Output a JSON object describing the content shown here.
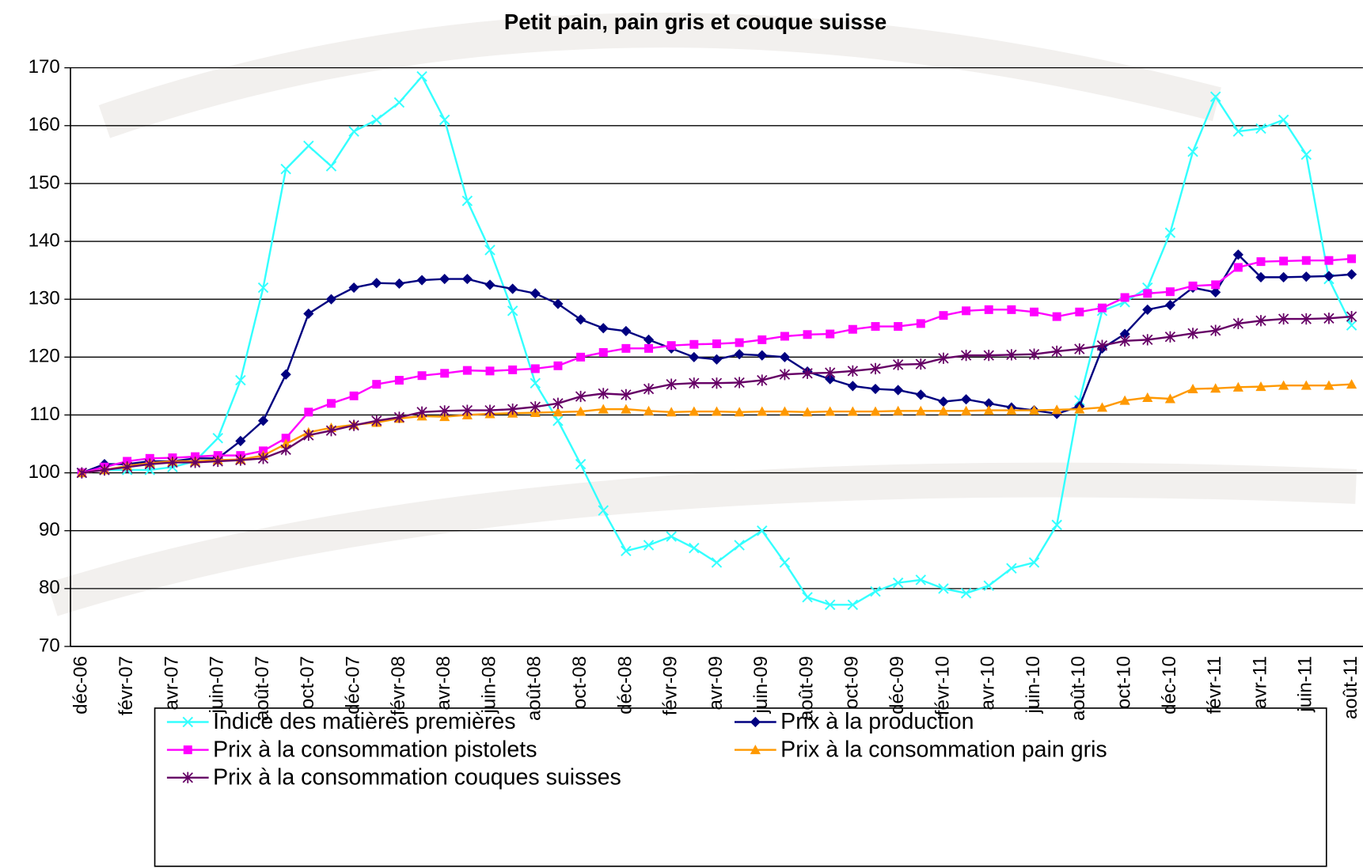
{
  "chart_data": {
    "type": "line",
    "title": "Petit pain, pain gris et couque suisse",
    "categories": [
      "déc-06",
      null,
      "févr-07",
      null,
      "avr-07",
      null,
      "juin-07",
      null,
      "août-07",
      null,
      "oct-07",
      null,
      "déc-07",
      null,
      "févr-08",
      null,
      "avr-08",
      null,
      "juin-08",
      null,
      "août-08",
      null,
      "oct-08",
      null,
      "déc-08",
      null,
      "févr-09",
      null,
      "avr-09",
      null,
      "juin-09",
      null,
      "août-09",
      null,
      "oct-09",
      null,
      "déc-09",
      null,
      "févr-10",
      null,
      "avr-10",
      null,
      "juin-10",
      null,
      "août-10",
      null,
      "oct-10",
      null,
      "déc-10",
      null,
      "févr-11",
      null,
      "avr-11",
      null,
      "juin-11",
      null,
      "août-11"
    ],
    "ylim": [
      70,
      170
    ],
    "yticks": [
      70,
      80,
      90,
      100,
      110,
      120,
      130,
      140,
      150,
      160,
      170
    ],
    "grid": true,
    "series": [
      {
        "name": "Indice des matières premières",
        "color": "#33ffff",
        "marker": "x",
        "values": [
          100,
          100.5,
          100.5,
          100.5,
          101,
          102,
          106,
          116,
          132,
          152.5,
          156.5,
          153,
          159,
          161,
          164,
          168.5,
          161,
          147,
          138.5,
          128,
          115.5,
          109,
          101.5,
          93.5,
          86.5,
          87.5,
          89,
          87,
          84.5,
          87.5,
          90,
          84.5,
          78.5,
          77.2,
          77.2,
          79.5,
          81,
          81.5,
          80,
          79.2,
          80.5,
          83.5,
          84.5,
          91,
          112.5,
          128,
          129.5,
          132,
          141.5,
          155.5,
          165,
          159,
          159.5,
          161,
          155,
          133.5,
          125.5
        ]
      },
      {
        "name": "Prix à la production",
        "color": "#000080",
        "marker": "diamond",
        "values": [
          100,
          101.5,
          101.5,
          102,
          102,
          102.5,
          102.5,
          105.5,
          109,
          117,
          127.5,
          130,
          132,
          132.8,
          132.7,
          133.3,
          133.5,
          133.5,
          132.5,
          131.8,
          131,
          129.2,
          126.5,
          125,
          124.5,
          123,
          121.5,
          120,
          119.6,
          120.5,
          120.3,
          120,
          117.5,
          116.2,
          115,
          114.5,
          114.3,
          113.5,
          112.3,
          112.7,
          112,
          111.3,
          110.8,
          110.2,
          111.5,
          121.5,
          124,
          128.2,
          129,
          132,
          131.2,
          137.7,
          133.8,
          133.8,
          133.9,
          134,
          134.3
        ]
      },
      {
        "name": "Prix à la consommation pistolets",
        "color": "#ff00ff",
        "marker": "square",
        "values": [
          100,
          101,
          102,
          102.5,
          102.6,
          102.8,
          103,
          103,
          103.8,
          106,
          110.5,
          112,
          113.3,
          115.3,
          116,
          116.8,
          117.2,
          117.7,
          117.6,
          117.8,
          118,
          118.5,
          120,
          120.8,
          121.5,
          121.5,
          122,
          122.2,
          122.3,
          122.5,
          123,
          123.6,
          123.9,
          124,
          124.8,
          125.3,
          125.3,
          125.8,
          127.2,
          128,
          128.2,
          128.2,
          127.8,
          127,
          127.8,
          128.5,
          130.3,
          131,
          131.3,
          132.3,
          132.5,
          135.5,
          136.5,
          136.6,
          136.7,
          136.7,
          137
        ]
      },
      {
        "name": "Prix à la consommation pain gris",
        "color": "#ff9900",
        "marker": "triangle",
        "values": [
          100,
          100.5,
          101.2,
          101.7,
          102,
          102,
          102.2,
          102.3,
          103,
          105,
          107,
          107.8,
          108.3,
          108.7,
          109.4,
          109.8,
          109.7,
          110,
          110.2,
          110.3,
          110.4,
          110.5,
          110.6,
          111,
          111,
          110.7,
          110.5,
          110.6,
          110.6,
          110.5,
          110.6,
          110.6,
          110.5,
          110.6,
          110.6,
          110.6,
          110.7,
          110.7,
          110.7,
          110.7,
          110.8,
          110.8,
          110.8,
          110.9,
          111,
          111.3,
          112.5,
          113,
          112.8,
          114.5,
          114.6,
          114.8,
          114.9,
          115.1,
          115.1,
          115.1,
          115.3
        ]
      },
      {
        "name": "Prix à la consommation couques suisses",
        "color": "#660066",
        "marker": "star",
        "values": [
          100,
          100.5,
          101,
          101.5,
          101.8,
          101.8,
          102,
          102.2,
          102.5,
          104,
          106.5,
          107.3,
          108.2,
          109,
          109.6,
          110.5,
          110.7,
          110.8,
          110.8,
          111,
          111.4,
          112,
          113.2,
          113.7,
          113.5,
          114.5,
          115.3,
          115.5,
          115.5,
          115.6,
          116,
          117,
          117.2,
          117.3,
          117.6,
          118,
          118.7,
          118.8,
          119.8,
          120.3,
          120.3,
          120.4,
          120.5,
          121,
          121.4,
          122,
          122.8,
          123,
          123.5,
          124.1,
          124.6,
          125.8,
          126.3,
          126.6,
          126.6,
          126.7,
          127
        ]
      }
    ]
  }
}
